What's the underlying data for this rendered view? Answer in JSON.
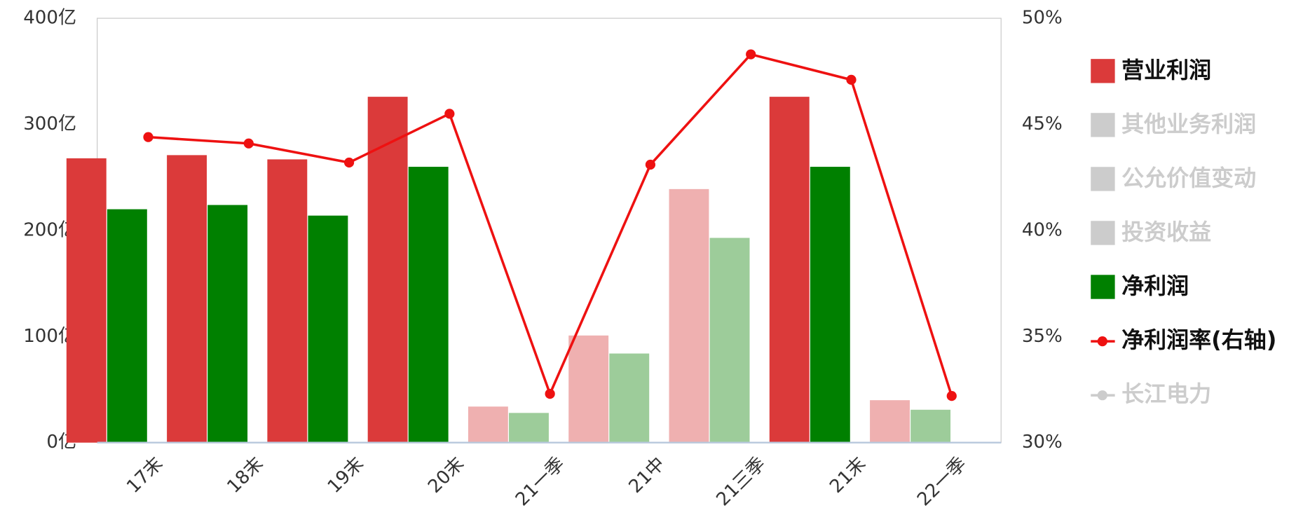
{
  "chart_data": {
    "type": "bar_line",
    "categories": [
      "17末",
      "18末",
      "19末",
      "20末",
      "21一季",
      "21中",
      "21三季",
      "21末",
      "22一季"
    ],
    "series": [
      {
        "name": "营业利润",
        "type": "bar",
        "color": "#db3a3a",
        "colors": [
          "#db3a3a",
          "#db3a3a",
          "#db3a3a",
          "#db3a3a",
          "#efb0b0",
          "#efb0b0",
          "#efb0b0",
          "#db3a3a",
          "#efb0b0"
        ],
        "values": [
          268,
          271,
          267,
          326,
          34,
          101,
          239,
          326,
          40
        ]
      },
      {
        "name": "其他业务利润",
        "hidden": true,
        "color": "#cccccc"
      },
      {
        "name": "公允价值变动",
        "hidden": true,
        "color": "#cccccc"
      },
      {
        "name": "投资收益",
        "hidden": true,
        "color": "#cccccc"
      },
      {
        "name": "净利润",
        "type": "bar",
        "color": "#008000",
        "colors": [
          "#008000",
          "#008000",
          "#008000",
          "#008000",
          "#9dcc9a",
          "#9dcc9a",
          "#9dcc9a",
          "#008000",
          "#9dcc9a"
        ],
        "values": [
          220,
          224,
          214,
          260,
          28,
          84,
          193,
          260,
          31
        ]
      },
      {
        "name": "净利润率(右轴)",
        "type": "line",
        "axis": "y2",
        "color": "#ee1111",
        "values": [
          44.4,
          44.1,
          43.2,
          45.5,
          32.3,
          43.1,
          48.3,
          47.1,
          32.2
        ]
      },
      {
        "name": "长江电力",
        "hidden": true,
        "type": "line",
        "color": "#cccccc"
      }
    ],
    "ylim": [
      0,
      400
    ],
    "yticks": [
      {
        "value": 0,
        "label": "0亿"
      },
      {
        "value": 100,
        "label": "100亿"
      },
      {
        "value": 200,
        "label": "200亿"
      },
      {
        "value": 300,
        "label": "300亿"
      },
      {
        "value": 400,
        "label": "400亿"
      }
    ],
    "y2lim": [
      30,
      50
    ],
    "y2ticks": [
      {
        "value": 30,
        "label": "30%"
      },
      {
        "value": 35,
        "label": "35%"
      },
      {
        "value": 40,
        "label": "40%"
      },
      {
        "value": 45,
        "label": "45%"
      },
      {
        "value": 50,
        "label": "50%"
      }
    ],
    "legend": "right"
  }
}
